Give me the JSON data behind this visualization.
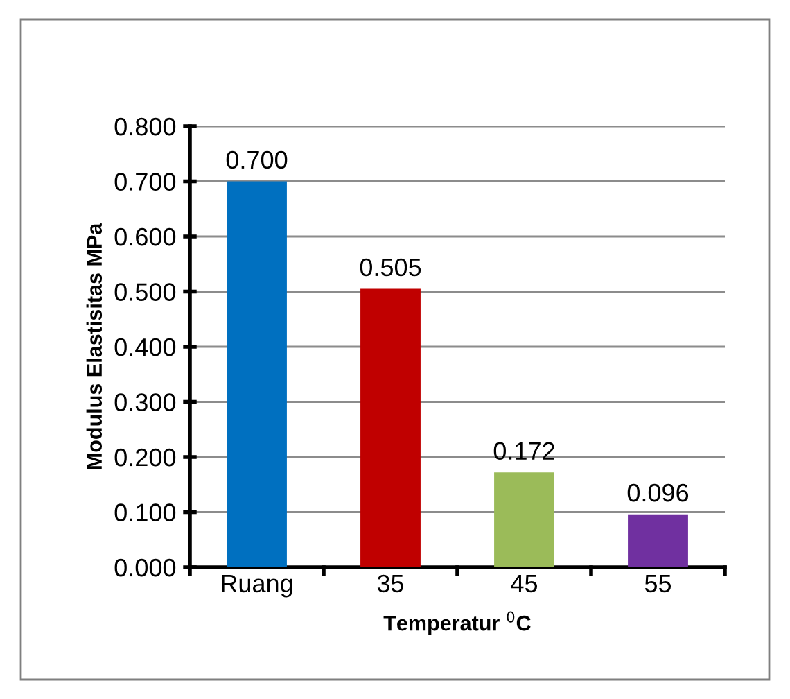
{
  "chart_data": {
    "type": "bar",
    "xlabel": "Temperatur $^{0}$C",
    "ylabel": "Modulus Elastisitas MPa",
    "categories": [
      "Ruang",
      "35",
      "45",
      "55"
    ],
    "values": [
      0.7,
      0.505,
      0.172,
      0.096
    ],
    "colors": [
      "#0070c0",
      "#c00000",
      "#9bbb59",
      "#7030a0"
    ],
    "value_labels": [
      "0.700",
      "0.505",
      "0.172",
      "0.096"
    ],
    "ylim": [
      0,
      0.8
    ],
    "yticks": [
      {
        "value": 0,
        "label": "0.000"
      },
      {
        "value": 0.1,
        "label": "0.100"
      },
      {
        "value": 0.2,
        "label": "0.200"
      },
      {
        "value": 0.3,
        "label": "0.300"
      },
      {
        "value": 0.4,
        "label": "0.400"
      },
      {
        "value": 0.5,
        "label": "0.500"
      },
      {
        "value": 0.6,
        "label": "0.600"
      },
      {
        "value": 0.7,
        "label": "0.700"
      },
      {
        "value": 0.8,
        "label": "0.800"
      }
    ],
    "grid": "y",
    "legend": false
  }
}
